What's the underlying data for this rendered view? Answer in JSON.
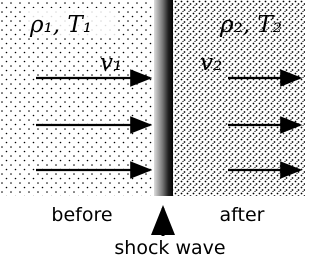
{
  "left": {
    "state": "ρ₁, T₁",
    "velocity": "v₁",
    "caption": "before"
  },
  "right": {
    "state": "ρ₂, T₂",
    "velocity": "v₂",
    "caption": "after"
  },
  "shock": {
    "label": "shock wave"
  }
}
